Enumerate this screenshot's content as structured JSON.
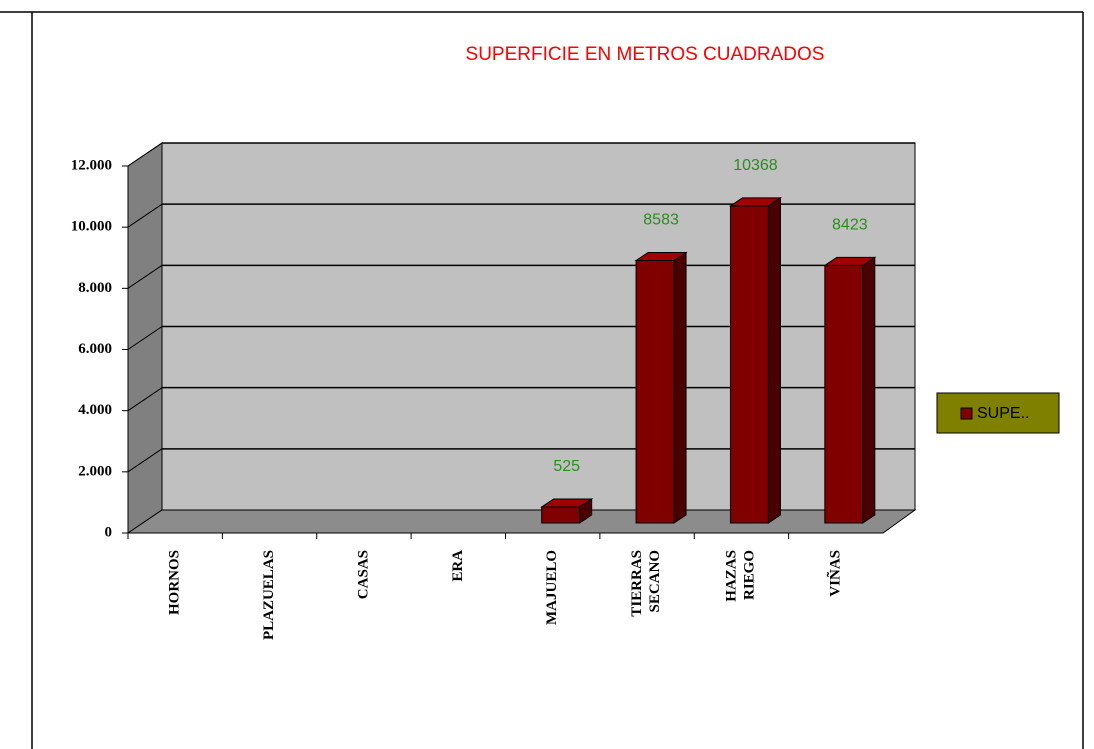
{
  "chart_data": {
    "type": "bar3d",
    "title": "SUPERFICIE EN METROS CUADRADOS",
    "categories": [
      "HORNOS",
      "PLAZUELAS",
      "CASAS",
      "ERA",
      "MAJUELO",
      "TIERRAS SECANO",
      "HAZAS RIEGO",
      "VIÑAS"
    ],
    "series": [
      {
        "name": "SUPE..",
        "color": "#800000",
        "values": [
          null,
          null,
          null,
          null,
          525,
          8583,
          10368,
          8423
        ]
      }
    ],
    "ylim": [
      0,
      12000
    ],
    "yticks": [
      0,
      {
        "value": 2000,
        "label": "2.000"
      },
      {
        "value": 4000,
        "label": "4.000"
      },
      {
        "value": 6000,
        "label": "6.000"
      },
      {
        "value": 8000,
        "label": "8.000"
      },
      {
        "value": 10000,
        "label": "10.000"
      },
      {
        "value": 12000,
        "label": "12.000"
      }
    ],
    "grid": true,
    "legend": "right"
  }
}
